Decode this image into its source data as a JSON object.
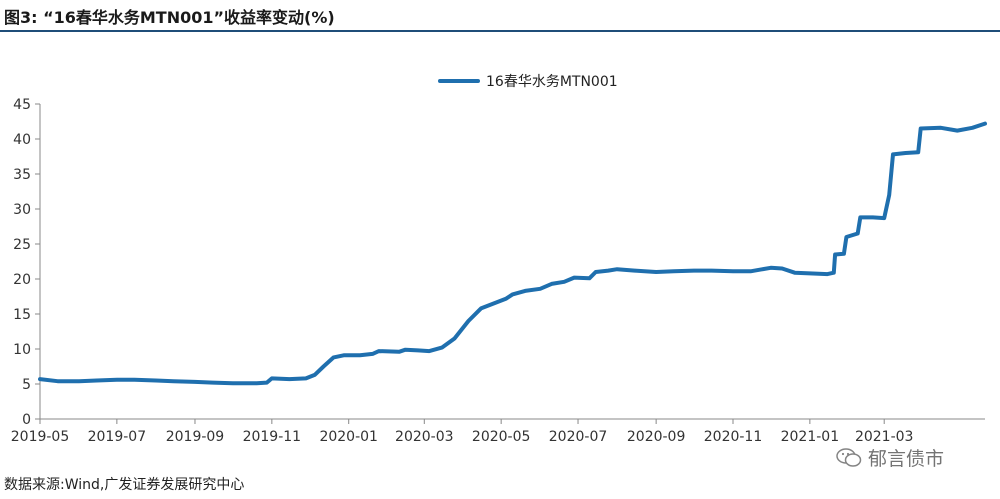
{
  "figure": {
    "title": "图3:  “16春华水务MTN001”收益率变动(%)",
    "source": "数据来源:Wind,广发证券发展研究中心",
    "watermark": "郁言债市",
    "watermark_icon": "wechat-icon"
  },
  "colors": {
    "series": "#1f6fae",
    "axis": "#888888",
    "title_rule": "#1f4e79"
  },
  "chart_data": {
    "type": "line",
    "title": "",
    "xlabel": "",
    "ylabel": "",
    "ylim": [
      0,
      45
    ],
    "yticks": [
      "0",
      "5",
      "10",
      "15",
      "20",
      "25",
      "30",
      "35",
      "40",
      "45"
    ],
    "xlim": [
      "2019-05-01",
      "2021-05-20"
    ],
    "xticks": [
      "2019-05",
      "2019-07",
      "2019-09",
      "2019-11",
      "2020-01",
      "2020-03",
      "2020-05",
      "2020-07",
      "2020-09",
      "2020-11",
      "2021-01",
      "2021-03"
    ],
    "grid": false,
    "legend": "top-center",
    "series": [
      {
        "name": "16春华水务MTN001",
        "points": [
          [
            "2019-05-01",
            5.7
          ],
          [
            "2019-05-15",
            5.4
          ],
          [
            "2019-06-01",
            5.4
          ],
          [
            "2019-06-15",
            5.5
          ],
          [
            "2019-07-01",
            5.6
          ],
          [
            "2019-07-15",
            5.6
          ],
          [
            "2019-08-01",
            5.5
          ],
          [
            "2019-08-15",
            5.4
          ],
          [
            "2019-09-01",
            5.3
          ],
          [
            "2019-09-15",
            5.2
          ],
          [
            "2019-10-01",
            5.1
          ],
          [
            "2019-10-20",
            5.1
          ],
          [
            "2019-10-28",
            5.2
          ],
          [
            "2019-11-01",
            5.8
          ],
          [
            "2019-11-15",
            5.7
          ],
          [
            "2019-11-28",
            5.8
          ],
          [
            "2019-12-05",
            6.3
          ],
          [
            "2019-12-12",
            7.5
          ],
          [
            "2019-12-20",
            8.8
          ],
          [
            "2019-12-28",
            9.1
          ],
          [
            "2020-01-10",
            9.1
          ],
          [
            "2020-01-20",
            9.3
          ],
          [
            "2020-01-25",
            9.7
          ],
          [
            "2020-02-10",
            9.6
          ],
          [
            "2020-02-15",
            9.9
          ],
          [
            "2020-02-25",
            9.8
          ],
          [
            "2020-03-05",
            9.7
          ],
          [
            "2020-03-15",
            10.2
          ],
          [
            "2020-03-25",
            11.5
          ],
          [
            "2020-04-05",
            14.0
          ],
          [
            "2020-04-15",
            15.8
          ],
          [
            "2020-04-25",
            16.5
          ],
          [
            "2020-05-05",
            17.2
          ],
          [
            "2020-05-10",
            17.8
          ],
          [
            "2020-05-20",
            18.3
          ],
          [
            "2020-06-01",
            18.6
          ],
          [
            "2020-06-10",
            19.3
          ],
          [
            "2020-06-20",
            19.6
          ],
          [
            "2020-06-28",
            20.2
          ],
          [
            "2020-07-10",
            20.1
          ],
          [
            "2020-07-15",
            21.0
          ],
          [
            "2020-07-25",
            21.2
          ],
          [
            "2020-08-01",
            21.4
          ],
          [
            "2020-08-15",
            21.2
          ],
          [
            "2020-09-01",
            21.0
          ],
          [
            "2020-09-15",
            21.1
          ],
          [
            "2020-10-01",
            21.2
          ],
          [
            "2020-10-15",
            21.2
          ],
          [
            "2020-11-01",
            21.1
          ],
          [
            "2020-11-15",
            21.1
          ],
          [
            "2020-12-01",
            21.6
          ],
          [
            "2020-12-10",
            21.5
          ],
          [
            "2020-12-20",
            20.9
          ],
          [
            "2021-01-01",
            20.8
          ],
          [
            "2021-01-15",
            20.7
          ],
          [
            "2021-01-20",
            20.9
          ],
          [
            "2021-01-21",
            23.5
          ],
          [
            "2021-01-28",
            23.6
          ],
          [
            "2021-01-30",
            26.0
          ],
          [
            "2021-02-08",
            26.5
          ],
          [
            "2021-02-10",
            28.8
          ],
          [
            "2021-02-20",
            28.8
          ],
          [
            "2021-03-01",
            28.7
          ],
          [
            "2021-03-05",
            32.0
          ],
          [
            "2021-03-08",
            37.8
          ],
          [
            "2021-03-18",
            38.0
          ],
          [
            "2021-03-28",
            38.1
          ],
          [
            "2021-03-30",
            41.5
          ],
          [
            "2021-04-15",
            41.6
          ],
          [
            "2021-04-28",
            41.2
          ],
          [
            "2021-05-10",
            41.6
          ],
          [
            "2021-05-20",
            42.2
          ]
        ]
      }
    ]
  }
}
